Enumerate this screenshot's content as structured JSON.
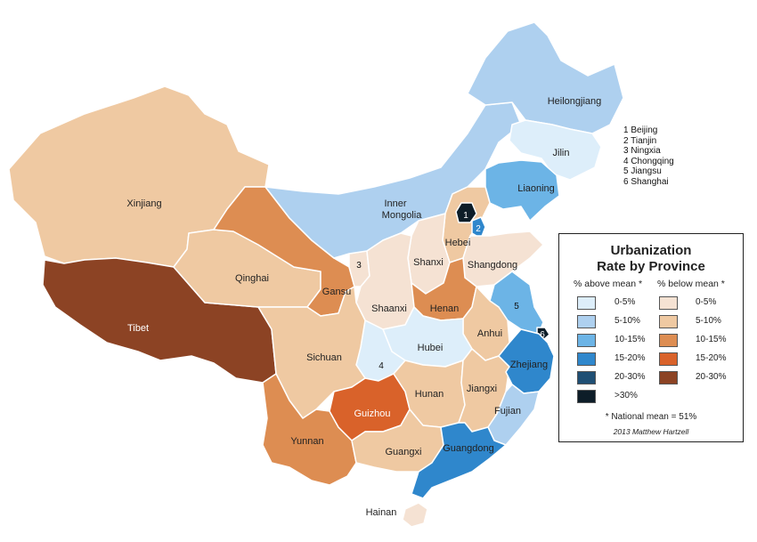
{
  "colors": {
    "above_0_5": "#ddeefa",
    "above_5_10": "#aed0ef",
    "above_10_15": "#6cb4e6",
    "above_15_20": "#2f87cc",
    "above_20_30": "#1f4f74",
    "above_30": "#0d1d28",
    "below_0_5": "#f5e2d3",
    "below_5_10": "#efc9a2",
    "below_10_15": "#dd8d52",
    "below_15_20": "#d9622a",
    "below_20_30": "#8c4324"
  },
  "provinces": {
    "heilongjiang": "Heilongjiang",
    "jilin": "Jilin",
    "liaoning": "Liaoning",
    "inner_mongolia_1": "Inner",
    "inner_mongolia_2": "Mongolia",
    "xinjiang": "Xinjiang",
    "tibet": "Tibet",
    "qinghai": "Qinghai",
    "gansu": "Gansu",
    "sichuan": "Sichuan",
    "yunnan": "Yunnan",
    "guizhou": "Guizhou",
    "guangxi": "Guangxi",
    "guangdong": "Guangdong",
    "hainan": "Hainan",
    "hunan": "Hunan",
    "jiangxi": "Jiangxi",
    "fujian": "Fujian",
    "zhejiang": "Zhejiang",
    "anhui": "Anhui",
    "hubei": "Hubei",
    "henan": "Henan",
    "shaanxi": "Shaanxi",
    "shanxi": "Shanxi",
    "hebei": "Hebei",
    "shandong": "Shangdong"
  },
  "numbers": {
    "n1": "1",
    "n2": "2",
    "n3": "3",
    "n4": "4",
    "n5": "5",
    "n6": "6"
  },
  "key_list": [
    "1 Beijing",
    "2 Tianjin",
    "3 Ningxia",
    "4 Chongqing",
    "5 Jiangsu",
    "6 Shanghai"
  ],
  "legend": {
    "title_line1": "Urbanization",
    "title_line2": "Rate by Province",
    "above_header": "% above mean *",
    "below_header": "% below mean *",
    "above_items": [
      "0-5%",
      "5-10%",
      "10-15%",
      "15-20%",
      "20-30%",
      ">30%"
    ],
    "below_items": [
      "0-5%",
      "5-10%",
      "10-15%",
      "15-20%",
      "20-30%"
    ],
    "note": "* National mean = 51%",
    "credit": "2013 Matthew Hartzell"
  }
}
